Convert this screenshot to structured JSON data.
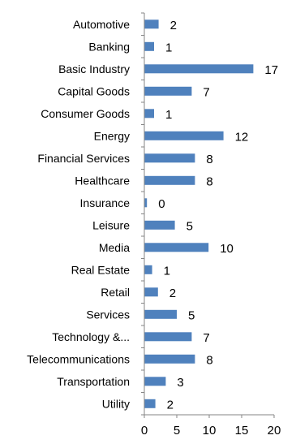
{
  "chart_data": {
    "type": "bar",
    "orientation": "horizontal",
    "categories": [
      "Automotive",
      "Banking",
      "Basic Industry",
      "Capital Goods",
      "Consumer Goods",
      "Energy",
      "Financial Services",
      "Healthcare",
      "Insurance",
      "Leisure",
      "Media",
      "Real Estate",
      "Retail",
      "Services",
      "Technology &...",
      "Telecommunications",
      "Transportation",
      "Utility"
    ],
    "values": [
      2,
      1,
      17,
      7,
      1,
      12,
      8,
      8,
      0,
      5,
      10,
      1,
      2,
      5,
      7,
      8,
      3,
      2
    ],
    "bar_lengths": [
      2.2,
      1.5,
      16.8,
      7.3,
      1.5,
      12.2,
      7.8,
      7.8,
      0.4,
      4.7,
      9.9,
      1.2,
      2.1,
      5.0,
      7.3,
      7.8,
      3.3,
      1.7
    ],
    "xlim": [
      0,
      20
    ],
    "xticks": [
      "0",
      "5",
      "10",
      "15",
      "20"
    ],
    "grid": false,
    "bar_color": "#4f81bd",
    "axis_color": "#868686"
  }
}
